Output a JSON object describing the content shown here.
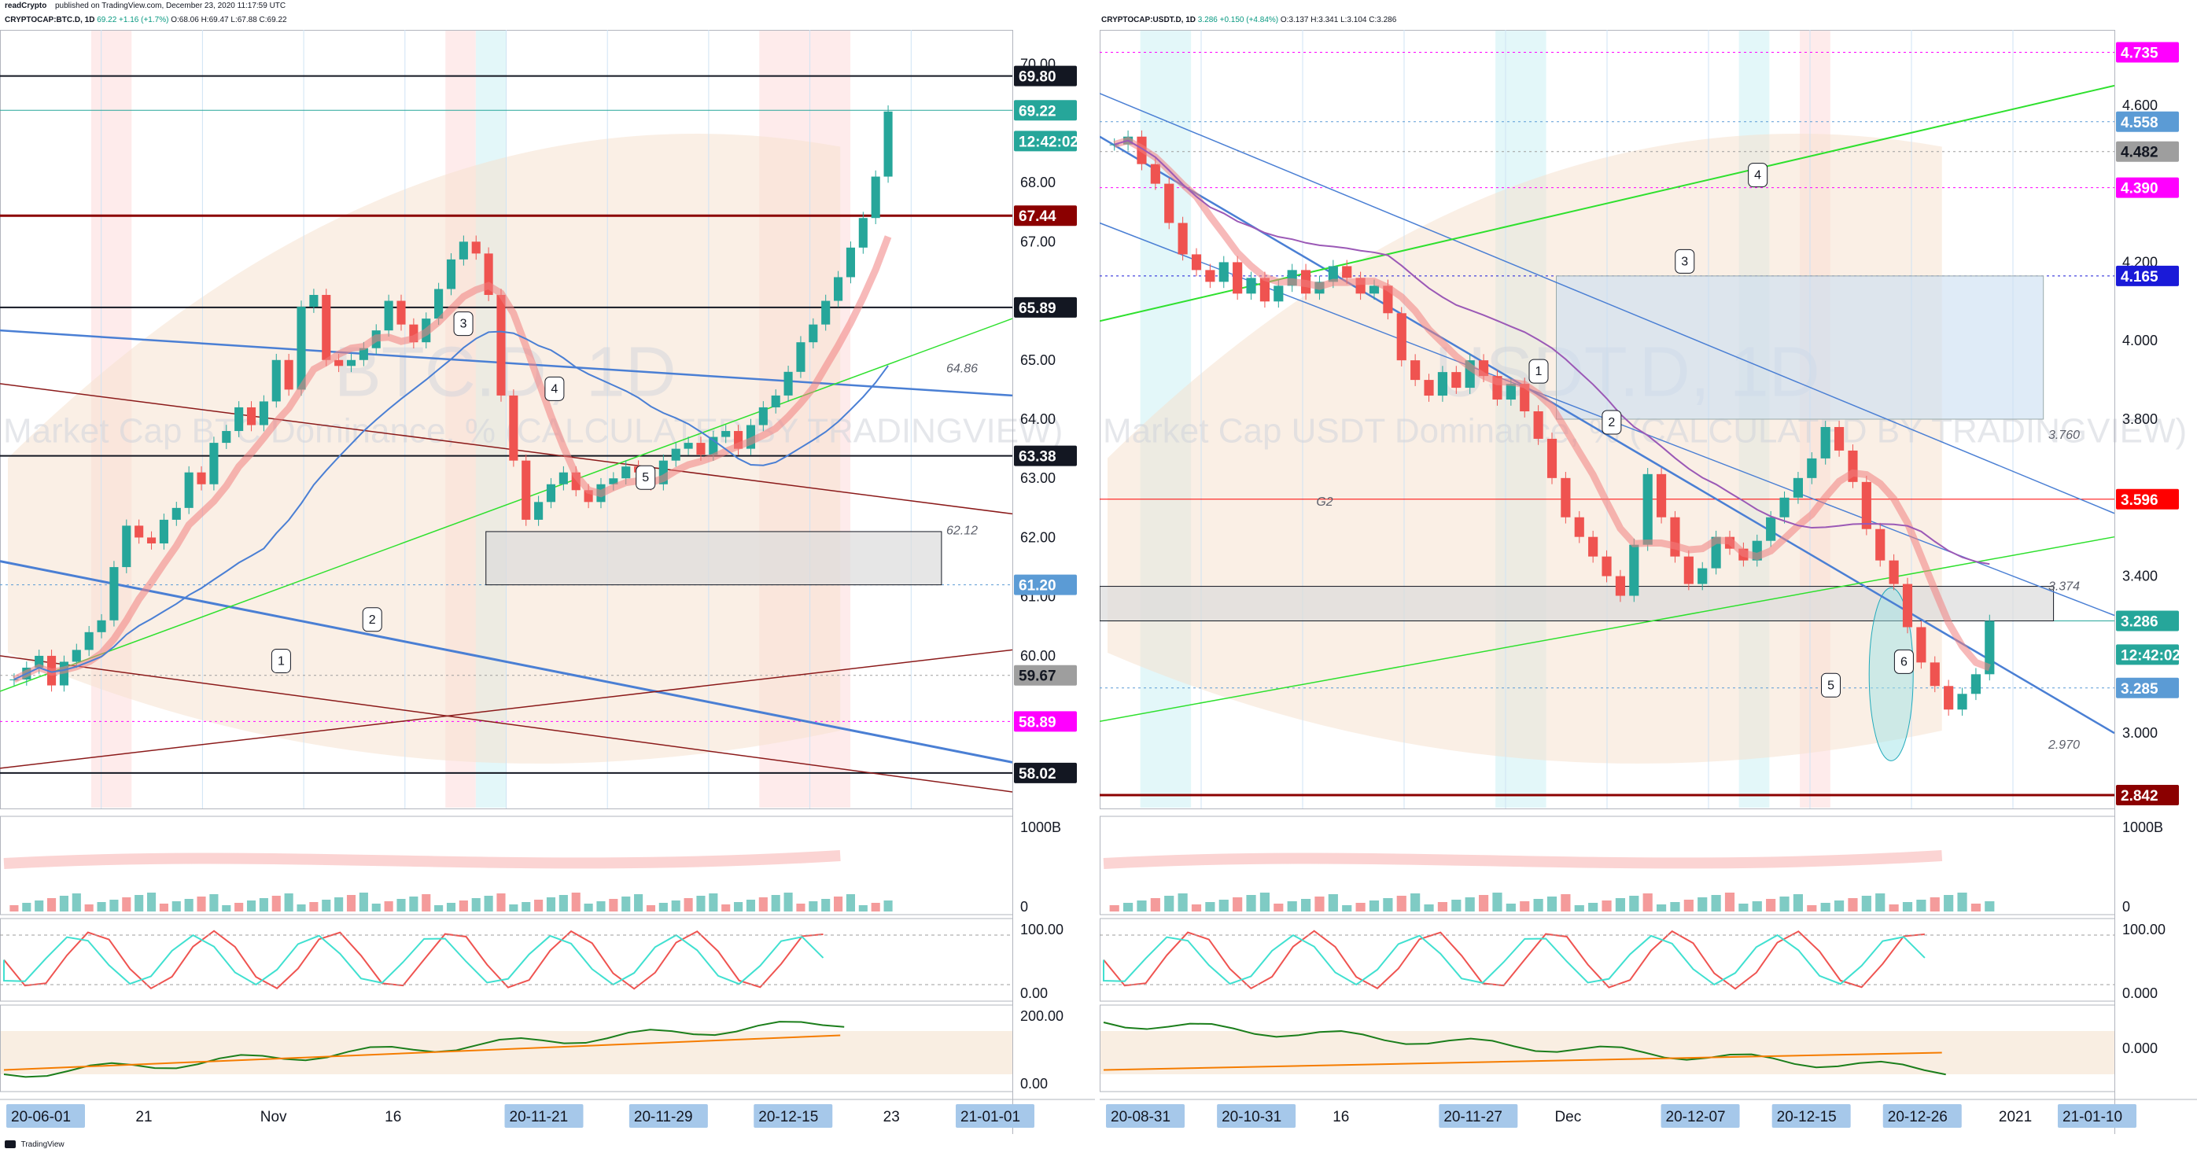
{
  "header": {
    "author": "readCrypto",
    "published": "published on TradingView.com, December 23, 2020 11:17:59 UTC"
  },
  "footer": {
    "brand": "TradingView"
  },
  "chart_data": [
    {
      "type": "candlestick",
      "symbol_line": {
        "symbol": "CRYPTOCAP:BTC.D, 1D",
        "last": "69.22",
        "change": "+1.16 (+1.7%)",
        "o": "O:68.06",
        "h": "H:69.47",
        "l": "L:67.88",
        "c": "C:69.22"
      },
      "watermark": "BTC.D, 1D",
      "watermark_sub": "Market Cap BTC Dominance, % (CALCULATED BY TRADINGVIEW)",
      "ylim": [
        57.5,
        70.5
      ],
      "y_ticks": [
        "70.00",
        "68.00",
        "67.00",
        "65.00",
        "64.00",
        "63.00",
        "62.00",
        "61.00",
        "60.00"
      ],
      "price_labels": [
        {
          "value": "69.80",
          "bg": "#131722",
          "fg": "#ffffff",
          "y": 69.8
        },
        {
          "value": "69.22",
          "bg": "#26a69a",
          "fg": "#ffffff",
          "y": 69.22
        },
        {
          "value": "12:42:02",
          "bg": "#26a69a",
          "fg": "#ffffff",
          "y": 68.7
        },
        {
          "value": "67.44",
          "bg": "#8b0000",
          "fg": "#ffffff",
          "y": 67.44
        },
        {
          "value": "65.89",
          "bg": "#131722",
          "fg": "#ffffff",
          "y": 65.89
        },
        {
          "value": "63.38",
          "bg": "#131722",
          "fg": "#ffffff",
          "y": 63.38
        },
        {
          "value": "61.20",
          "bg": "#5b9bd5",
          "fg": "#ffffff",
          "y": 61.2
        },
        {
          "value": "59.67",
          "bg": "#9e9e9e",
          "fg": "#131722",
          "y": 59.67
        },
        {
          "value": "58.89",
          "bg": "#ff00ff",
          "fg": "#ffffff",
          "y": 58.89
        },
        {
          "value": "58.02",
          "bg": "#131722",
          "fg": "#ffffff",
          "y": 58.02
        }
      ],
      "level_notes": [
        {
          "text": "64.86",
          "y": 64.86
        },
        {
          "text": "62.12",
          "y": 62.12
        }
      ],
      "x_labels": [
        "20-06-01",
        "21",
        "Nov",
        "16",
        "20-11-21",
        "20-11-29",
        "20-12-15",
        "23",
        "21-01-01"
      ],
      "x_label_highlight": [
        true,
        false,
        false,
        false,
        true,
        true,
        true,
        false,
        true
      ],
      "close_series": [
        59.6,
        59.8,
        60.0,
        59.5,
        59.9,
        60.1,
        60.4,
        60.6,
        61.5,
        62.2,
        62.0,
        61.9,
        62.3,
        62.5,
        63.1,
        62.9,
        63.6,
        63.8,
        64.2,
        63.9,
        64.3,
        65.0,
        64.5,
        65.9,
        66.1,
        65.0,
        64.9,
        65.0,
        65.2,
        65.5,
        66.0,
        65.6,
        65.3,
        65.7,
        66.2,
        66.7,
        67.0,
        66.8,
        66.1,
        64.4,
        63.3,
        62.3,
        62.6,
        62.9,
        63.1,
        62.8,
        62.6,
        62.9,
        63.0,
        63.2,
        63.1,
        62.9,
        63.3,
        63.5,
        63.6,
        63.4,
        63.7,
        63.8,
        63.5,
        63.9,
        64.2,
        64.4,
        64.8,
        65.3,
        65.6,
        66.0,
        66.4,
        66.9,
        67.4,
        68.1,
        69.2
      ],
      "wave_marks": [
        "1",
        "2",
        "3",
        "4",
        "5"
      ],
      "indicators": [
        {
          "name": "volume",
          "axis": [
            "1000B",
            "0"
          ]
        },
        {
          "name": "stoch",
          "axis": [
            "100.00",
            "0.00"
          ]
        },
        {
          "name": "obv",
          "axis": [
            "200.00",
            "0.00"
          ]
        }
      ]
    },
    {
      "type": "candlestick",
      "symbol_line": {
        "symbol": "CRYPTOCAP:USDT.D, 1D",
        "last": "3.286",
        "change": "+0.150 (+4.84%)",
        "o": "O:3.137",
        "h": "H:3.341",
        "l": "L:3.104",
        "c": "C:3.286"
      },
      "watermark": "USDT.D, 1D",
      "watermark_sub": "Market Cap USDT Dominance, % (CALCULATED BY TRADINGVIEW)",
      "ylim": [
        2.82,
        4.78
      ],
      "y_ticks": [
        "4.600",
        "4.200",
        "4.000",
        "3.800",
        "3.400",
        "3.000"
      ],
      "price_labels": [
        {
          "value": "4.735",
          "bg": "#ff00ff",
          "fg": "#ffffff",
          "y": 4.735
        },
        {
          "value": "4.558",
          "bg": "#5b9bd5",
          "fg": "#ffffff",
          "y": 4.558
        },
        {
          "value": "4.482",
          "bg": "#9e9e9e",
          "fg": "#131722",
          "y": 4.482
        },
        {
          "value": "4.390",
          "bg": "#ff00ff",
          "fg": "#ffffff",
          "y": 4.39
        },
        {
          "value": "4.165",
          "bg": "#1a1ad8",
          "fg": "#ffffff",
          "y": 4.165
        },
        {
          "value": "3.596",
          "bg": "#ff0000",
          "fg": "#ffffff",
          "y": 3.596
        },
        {
          "value": "3.286",
          "bg": "#26a69a",
          "fg": "#ffffff",
          "y": 3.286
        },
        {
          "value": "12:42:02",
          "bg": "#26a69a",
          "fg": "#ffffff",
          "y": 3.2
        },
        {
          "value": "3.285",
          "bg": "#5b9bd5",
          "fg": "#ffffff",
          "y": 3.115
        },
        {
          "value": "2.842",
          "bg": "#8b0000",
          "fg": "#ffffff",
          "y": 2.842
        }
      ],
      "level_notes": [
        {
          "text": "3.760",
          "y": 3.76
        },
        {
          "text": "3.374",
          "y": 3.374
        },
        {
          "text": "2.970",
          "y": 2.97
        },
        {
          "text": "G2",
          "y": 3.59
        }
      ],
      "x_labels": [
        "20-08-31",
        "20-10-31",
        "16",
        "20-11-27",
        "Dec",
        "20-12-07",
        "20-12-15",
        "20-12-26",
        "2021",
        "21-01-10"
      ],
      "x_label_highlight": [
        true,
        true,
        false,
        true,
        false,
        true,
        true,
        true,
        false,
        true
      ],
      "close_series": [
        4.5,
        4.52,
        4.45,
        4.4,
        4.3,
        4.22,
        4.18,
        4.15,
        4.2,
        4.12,
        4.16,
        4.1,
        4.14,
        4.18,
        4.12,
        4.15,
        4.19,
        4.16,
        4.12,
        4.14,
        4.07,
        3.95,
        3.9,
        3.86,
        3.92,
        3.88,
        3.95,
        3.91,
        3.85,
        3.89,
        3.82,
        3.75,
        3.65,
        3.55,
        3.5,
        3.45,
        3.4,
        3.35,
        3.48,
        3.66,
        3.55,
        3.45,
        3.38,
        3.42,
        3.5,
        3.47,
        3.44,
        3.49,
        3.55,
        3.6,
        3.65,
        3.7,
        3.78,
        3.72,
        3.64,
        3.52,
        3.44,
        3.38,
        3.27,
        3.18,
        3.12,
        3.06,
        3.1,
        3.15,
        3.286
      ],
      "wave_marks": [
        "1",
        "2",
        "3",
        "4",
        "5",
        "6"
      ],
      "indicators": [
        {
          "name": "volume",
          "axis": [
            "1000B",
            "0"
          ]
        },
        {
          "name": "stoch",
          "axis": [
            "100.00",
            "0.000"
          ]
        },
        {
          "name": "obv",
          "axis": [
            "0.000"
          ]
        }
      ]
    }
  ]
}
